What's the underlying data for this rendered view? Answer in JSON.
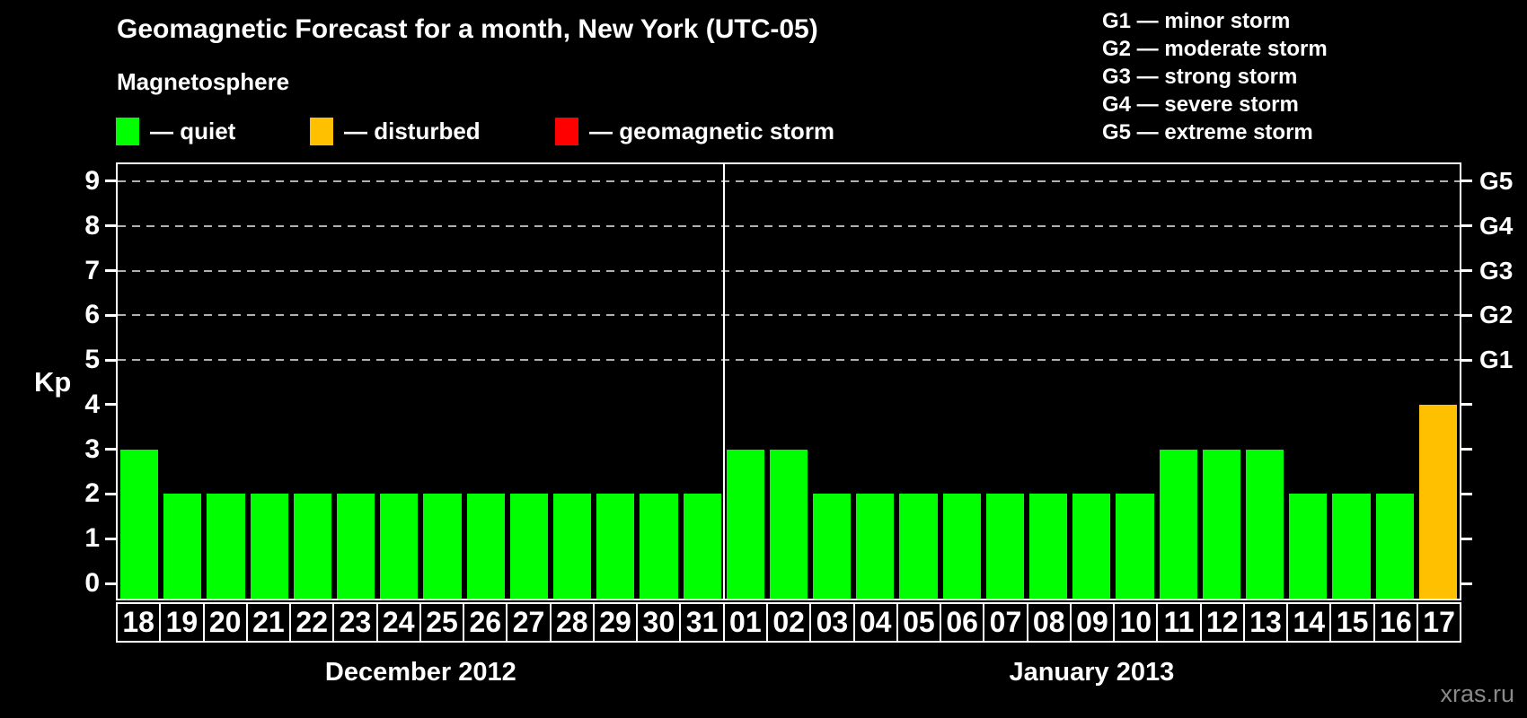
{
  "title": "Geomagnetic Forecast for a month, New York (UTC-05)",
  "subtitle": "Magnetosphere",
  "legend": {
    "items": [
      {
        "id": "quiet",
        "color": "#00ff00",
        "label": "— quiet"
      },
      {
        "id": "disturbed",
        "color": "#ffc000",
        "label": "— disturbed"
      },
      {
        "id": "storm",
        "color": "#ff0000",
        "label": "— geomagnetic storm"
      }
    ]
  },
  "g_scale_legend": [
    "G1 — minor storm",
    "G2 — moderate storm",
    "G3 — strong storm",
    "G4 — severe storm",
    "G5 — extreme storm"
  ],
  "watermark": "xras.ru",
  "chart_data": {
    "type": "bar",
    "title": "Geomagnetic Forecast for a month, New York (UTC-05)",
    "ylabel": "Kp",
    "ylim": [
      0,
      9
    ],
    "y_ticks": [
      0,
      1,
      2,
      3,
      4,
      5,
      6,
      7,
      8,
      9
    ],
    "grid_levels": [
      5,
      6,
      7,
      8,
      9
    ],
    "right_axis": [
      {
        "level": 5,
        "label": "G1"
      },
      {
        "level": 6,
        "label": "G2"
      },
      {
        "level": 7,
        "label": "G3"
      },
      {
        "level": 8,
        "label": "G4"
      },
      {
        "level": 9,
        "label": "G5"
      }
    ],
    "legend_position": "top",
    "grid": "dashed, storm levels only",
    "months": [
      {
        "label": "December 2012",
        "days": [
          {
            "day": "18",
            "kp": 3,
            "cond": "quiet"
          },
          {
            "day": "19",
            "kp": 2,
            "cond": "quiet"
          },
          {
            "day": "20",
            "kp": 2,
            "cond": "quiet"
          },
          {
            "day": "21",
            "kp": 2,
            "cond": "quiet"
          },
          {
            "day": "22",
            "kp": 2,
            "cond": "quiet"
          },
          {
            "day": "23",
            "kp": 2,
            "cond": "quiet"
          },
          {
            "day": "24",
            "kp": 2,
            "cond": "quiet"
          },
          {
            "day": "25",
            "kp": 2,
            "cond": "quiet"
          },
          {
            "day": "26",
            "kp": 2,
            "cond": "quiet"
          },
          {
            "day": "27",
            "kp": 2,
            "cond": "quiet"
          },
          {
            "day": "28",
            "kp": 2,
            "cond": "quiet"
          },
          {
            "day": "29",
            "kp": 2,
            "cond": "quiet"
          },
          {
            "day": "30",
            "kp": 2,
            "cond": "quiet"
          },
          {
            "day": "31",
            "kp": 2,
            "cond": "quiet"
          }
        ]
      },
      {
        "label": "January 2013",
        "days": [
          {
            "day": "01",
            "kp": 3,
            "cond": "quiet"
          },
          {
            "day": "02",
            "kp": 3,
            "cond": "quiet"
          },
          {
            "day": "03",
            "kp": 2,
            "cond": "quiet"
          },
          {
            "day": "04",
            "kp": 2,
            "cond": "quiet"
          },
          {
            "day": "05",
            "kp": 2,
            "cond": "quiet"
          },
          {
            "day": "06",
            "kp": 2,
            "cond": "quiet"
          },
          {
            "day": "07",
            "kp": 2,
            "cond": "quiet"
          },
          {
            "day": "08",
            "kp": 2,
            "cond": "quiet"
          },
          {
            "day": "09",
            "kp": 2,
            "cond": "quiet"
          },
          {
            "day": "10",
            "kp": 2,
            "cond": "quiet"
          },
          {
            "day": "11",
            "kp": 3,
            "cond": "quiet"
          },
          {
            "day": "12",
            "kp": 3,
            "cond": "quiet"
          },
          {
            "day": "13",
            "kp": 3,
            "cond": "quiet"
          },
          {
            "day": "14",
            "kp": 2,
            "cond": "quiet"
          },
          {
            "day": "15",
            "kp": 2,
            "cond": "quiet"
          },
          {
            "day": "16",
            "kp": 2,
            "cond": "quiet"
          },
          {
            "day": "17",
            "kp": 4,
            "cond": "disturbed"
          }
        ]
      }
    ]
  }
}
